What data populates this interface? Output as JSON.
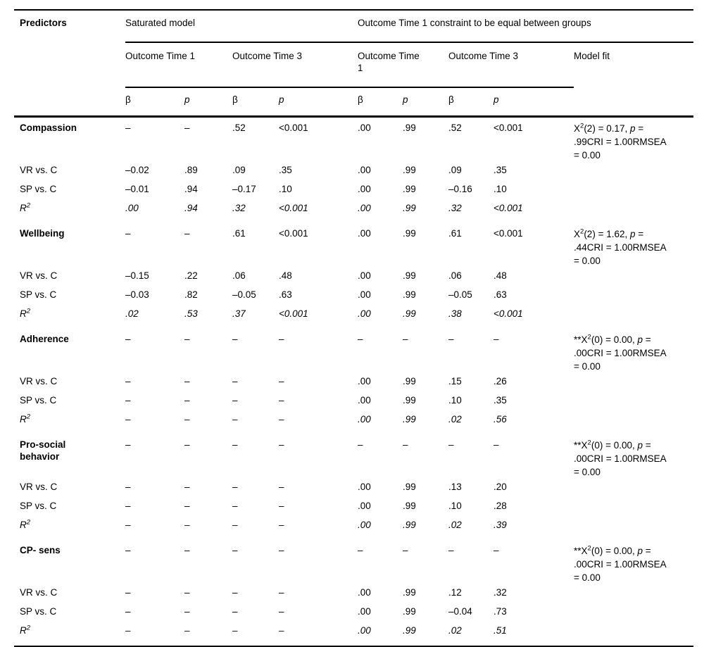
{
  "table": {
    "header": {
      "predictors": "Predictors",
      "saturated_group": "Saturated model",
      "constrained_group": "Outcome Time 1 constraint to be equal between groups",
      "sub_saturated_t1": "Outcome Time 1",
      "sub_saturated_t3": "Outcome Time 3",
      "sub_constrained_t1": "Outcome Time 1",
      "sub_constrained_t3": "Outcome Time 3",
      "model_fit": "Model fit",
      "beta": "β",
      "p": "p"
    },
    "blocks": [
      {
        "predictor": "Compassion",
        "values": [
          "–",
          "–",
          ".52",
          "<0.001",
          ".00",
          ".99",
          ".52",
          "<0.001"
        ],
        "fit": {
          "prefix": "",
          "stat": "X",
          "sup": "2",
          "args": "(2) = 0.17, ",
          "p": "p",
          "tail": " = .99CRI = 1.00RMSEA = 0.00"
        },
        "rows": [
          {
            "label": "VR vs. C",
            "values": [
              "–0.02",
              ".89",
              ".09",
              ".35",
              ".00",
              ".99",
              ".09",
              ".35"
            ]
          },
          {
            "label": "SP vs. C",
            "values": [
              "–0.01",
              ".94",
              "–0.17",
              ".10",
              ".00",
              ".99",
              "–0.16",
              ".10"
            ]
          },
          {
            "label_base": "R",
            "label_sup": "2",
            "values": [
              ".00",
              ".94",
              ".32",
              "<0.001",
              ".00",
              ".99",
              ".32",
              "<0.001"
            ]
          }
        ]
      },
      {
        "predictor": "Wellbeing",
        "values": [
          "–",
          "–",
          ".61",
          "<0.001",
          ".00",
          ".99",
          ".61",
          "<0.001"
        ],
        "fit": {
          "prefix": "",
          "stat": "X",
          "sup": "2",
          "args": "(2) = 1.62, ",
          "p": "p",
          "tail": " = .44CRI = 1.00RMSEA = 0.00"
        },
        "rows": [
          {
            "label": "VR vs. C",
            "values": [
              "–0.15",
              ".22",
              ".06",
              ".48",
              ".00",
              ".99",
              ".06",
              ".48"
            ]
          },
          {
            "label": "SP vs. C",
            "values": [
              "–0.03",
              ".82",
              "–0.05",
              ".63",
              ".00",
              ".99",
              "–0.05",
              ".63"
            ]
          },
          {
            "label_base": "R",
            "label_sup": "2",
            "values": [
              ".02",
              ".53",
              ".37",
              "<0.001",
              ".00",
              ".99",
              ".38",
              "<0.001"
            ]
          }
        ]
      },
      {
        "predictor": "Adherence",
        "values": [
          "–",
          "–",
          "–",
          "–",
          "–",
          "–",
          "–",
          "–"
        ],
        "fit": {
          "prefix": "**",
          "stat": "X",
          "sup": "2",
          "args": "(0) = 0.00, ",
          "p": "p",
          "tail": " = .00CRI = 1.00RMSEA = 0.00"
        },
        "rows": [
          {
            "label": "VR vs. C",
            "values": [
              "–",
              "–",
              "–",
              "–",
              ".00",
              ".99",
              ".15",
              ".26"
            ]
          },
          {
            "label": "SP vs. C",
            "values": [
              "–",
              "–",
              "–",
              "–",
              ".00",
              ".99",
              ".10",
              ".35"
            ]
          },
          {
            "label_base": "R",
            "label_sup": "2",
            "values": [
              "–",
              "–",
              "–",
              "–",
              ".00",
              ".99",
              ".02",
              ".56"
            ]
          }
        ]
      },
      {
        "predictor": "Pro-social behavior",
        "values": [
          "–",
          "–",
          "–",
          "–",
          "–",
          "–",
          "–",
          "–"
        ],
        "fit": {
          "prefix": "**",
          "stat": "X",
          "sup": "2",
          "args": "(0) = 0.00, ",
          "p": "p",
          "tail": " = .00CRI = 1.00RMSEA = 0.00"
        },
        "rows": [
          {
            "label": "VR vs. C",
            "values": [
              "–",
              "–",
              "–",
              "–",
              ".00",
              ".99",
              ".13",
              ".20"
            ]
          },
          {
            "label": "SP vs. C",
            "values": [
              "–",
              "–",
              "–",
              "–",
              ".00",
              ".99",
              ".10",
              ".28"
            ]
          },
          {
            "label_base": "R",
            "label_sup": "2",
            "values": [
              "–",
              "–",
              "–",
              "–",
              ".00",
              ".99",
              ".02",
              ".39"
            ]
          }
        ]
      },
      {
        "predictor": "CP- sens",
        "values": [
          "–",
          "–",
          "–",
          "–",
          "–",
          "–",
          "–",
          "–"
        ],
        "fit": {
          "prefix": "**",
          "stat": "X",
          "sup": "2",
          "args": "(0) = 0.00, ",
          "p": "p",
          "tail": " = .00CRI = 1.00RMSEA = 0.00"
        },
        "rows": [
          {
            "label": "VR vs. C",
            "values": [
              "–",
              "–",
              "–",
              "–",
              ".00",
              ".99",
              ".12",
              ".32"
            ]
          },
          {
            "label": "SP vs. C",
            "values": [
              "–",
              "–",
              "–",
              "–",
              ".00",
              ".99",
              "–0.04",
              ".73"
            ]
          },
          {
            "label_base": "R",
            "label_sup": "2",
            "values": [
              "–",
              "–",
              "–",
              "–",
              ".00",
              ".99",
              ".02",
              ".51"
            ]
          }
        ]
      }
    ]
  }
}
